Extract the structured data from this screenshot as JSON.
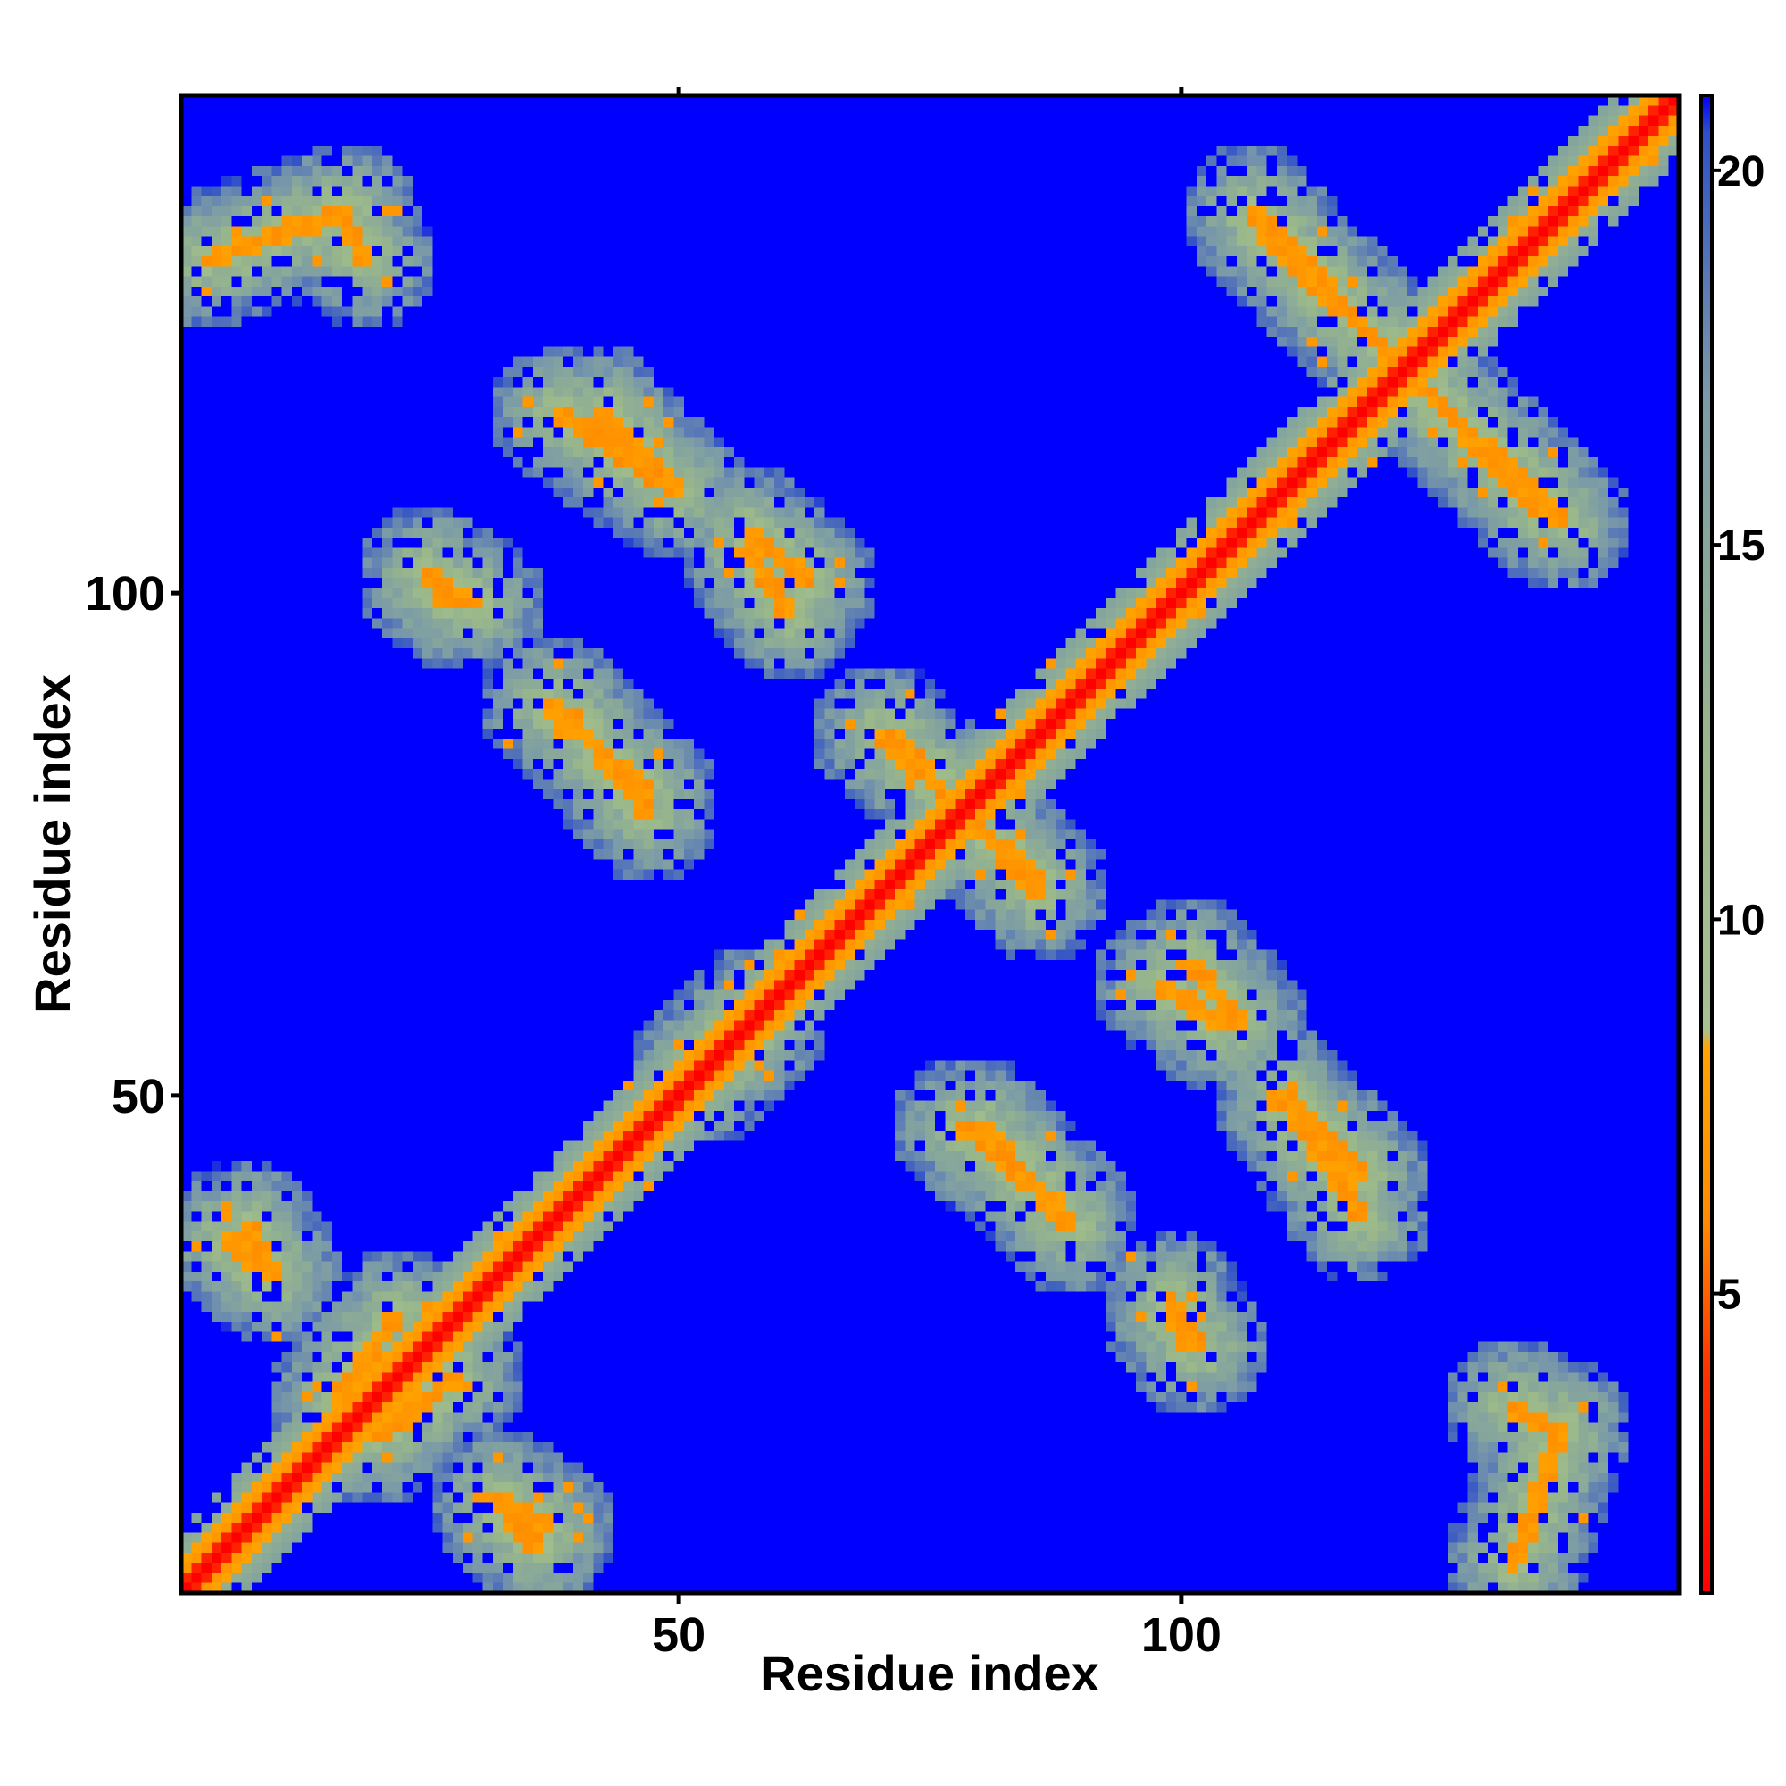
{
  "chart_data": {
    "type": "heatmap",
    "title": "",
    "xlabel": "Residue index",
    "ylabel": "Residue index",
    "xlim": [
      1,
      149
    ],
    "ylim": [
      1,
      149
    ],
    "x_ticks": [
      50,
      100
    ],
    "y_ticks": [
      50,
      100
    ],
    "x_tick_labels": [
      "50",
      "100"
    ],
    "y_tick_labels": [
      "50",
      "100"
    ],
    "value_description": "pairwise residue distance, capped at 21",
    "colorbar": {
      "range": [
        1,
        21
      ],
      "ticks": [
        5,
        10,
        15,
        20
      ],
      "tick_labels": [
        "5",
        "10",
        "15",
        "20"
      ],
      "colors": [
        {
          "value": 1,
          "color": "#ff0000"
        },
        {
          "value": 4,
          "color": "#ff3300"
        },
        {
          "value": 6,
          "color": "#ff8c00"
        },
        {
          "value": 8.3,
          "color": "#ffa500"
        },
        {
          "value": 8.5,
          "color": "#a8c090"
        },
        {
          "value": 12,
          "color": "#9ab88a"
        },
        {
          "value": 17,
          "color": "#7a9aa8"
        },
        {
          "value": 20.5,
          "color": "#3050c8"
        },
        {
          "value": 21,
          "color": "#0000ff"
        }
      ]
    },
    "contact_bands": [
      {
        "kind": "main_diagonal",
        "from": [
          1,
          1
        ],
        "to": [
          149,
          149
        ]
      },
      {
        "kind": "anti_parallel",
        "from": [
          3,
          133
        ],
        "to": [
          17,
          138
        ]
      },
      {
        "kind": "anti_parallel",
        "from": [
          38,
          118
        ],
        "to": [
          50,
          110
        ]
      },
      {
        "kind": "anti_parallel",
        "from": [
          25,
          101
        ],
        "to": [
          30,
          99
        ]
      },
      {
        "kind": "anti_parallel",
        "from": [
          57,
          106
        ],
        "to": [
          63,
          101
        ]
      },
      {
        "kind": "anti_parallel",
        "from": [
          37,
          89
        ],
        "to": [
          47,
          80
        ]
      },
      {
        "kind": "anti_parallel",
        "from": [
          70,
          86
        ],
        "to": [
          86,
          71
        ]
      },
      {
        "kind": "anti_parallel",
        "from": [
          108,
          136
        ],
        "to": [
          138,
          107
        ]
      },
      {
        "kind": "anti_parallel",
        "from": [
          98,
          61
        ],
        "to": [
          104,
          57
        ]
      },
      {
        "kind": "anti_parallel",
        "from": [
          110,
          50
        ],
        "to": [
          118,
          42
        ]
      },
      {
        "kind": "anti_parallel",
        "from": [
          78,
          47
        ],
        "to": [
          88,
          39
        ]
      },
      {
        "kind": "anti_parallel",
        "from": [
          99,
          28
        ],
        "to": [
          102,
          25
        ]
      },
      {
        "kind": "anti_parallel",
        "from": [
          133,
          19
        ],
        "to": [
          138,
          16
        ]
      },
      {
        "kind": "anti_parallel",
        "from": [
          5,
          36
        ],
        "to": [
          8,
          33
        ]
      },
      {
        "kind": "anti_parallel",
        "from": [
          32,
          10
        ],
        "to": [
          37,
          7
        ]
      },
      {
        "kind": "parallel",
        "from": [
          16,
          20
        ],
        "to": [
          22,
          28
        ]
      },
      {
        "kind": "parallel",
        "from": [
          52,
          53
        ],
        "to": [
          57,
          58
        ]
      }
    ]
  }
}
